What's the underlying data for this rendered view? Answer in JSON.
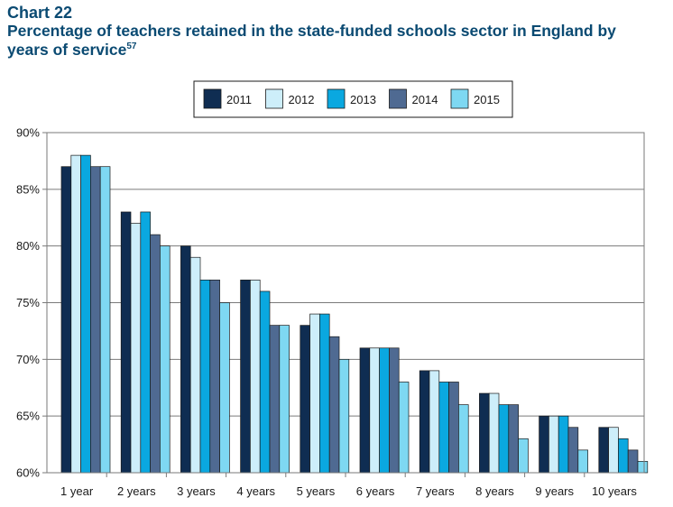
{
  "chart_label": "Chart 22",
  "title_main": "Percentage of teachers retained in the state-funded schools sector in England by years of service",
  "title_footnote": "57",
  "chart_data": {
    "type": "bar",
    "title": "Percentage of teachers retained in the state-funded schools sector in England by years of service",
    "xlabel": "",
    "ylabel": "",
    "categories": [
      "1 year",
      "2 years",
      "3 years",
      "4 years",
      "5 years",
      "6 years",
      "7 years",
      "8 years",
      "9 years",
      "10 years"
    ],
    "series": [
      {
        "name": "2011",
        "color": "#0f2d52",
        "values": [
          87,
          83,
          80,
          77,
          73,
          71,
          69,
          67,
          65,
          64
        ]
      },
      {
        "name": "2012",
        "color": "#cdeefa",
        "values": [
          88,
          82,
          79,
          77,
          74,
          71,
          69,
          67,
          65,
          64
        ]
      },
      {
        "name": "2013",
        "color": "#0aa8e0",
        "values": [
          88,
          83,
          77,
          76,
          74,
          71,
          68,
          66,
          65,
          63
        ]
      },
      {
        "name": "2014",
        "color": "#4f6a92",
        "values": [
          87,
          81,
          77,
          73,
          72,
          71,
          68,
          66,
          64,
          62
        ]
      },
      {
        "name": "2015",
        "color": "#7ed8f2",
        "values": [
          87,
          80,
          75,
          73,
          70,
          68,
          66,
          63,
          62,
          61
        ]
      }
    ],
    "ylim": [
      60,
      90
    ],
    "yticks": [
      60,
      65,
      70,
      75,
      80,
      85,
      90
    ],
    "ytick_suffix": "%",
    "grid": true,
    "legend_position": "top-center"
  }
}
